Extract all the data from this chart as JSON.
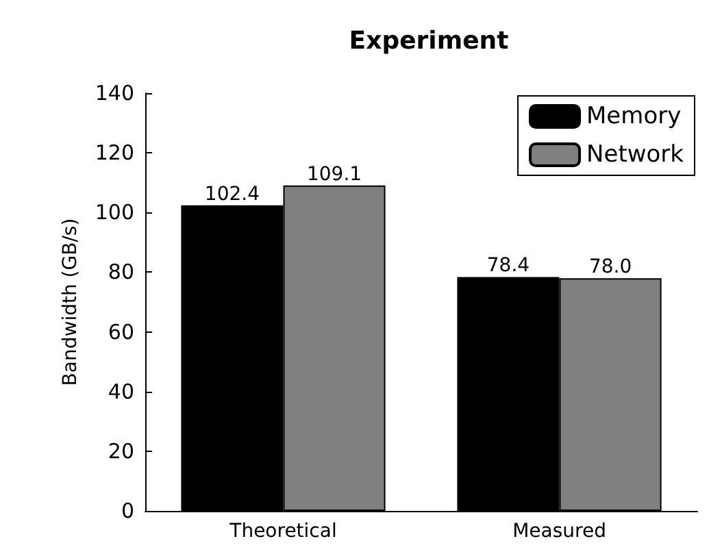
{
  "chart_data": {
    "type": "bar",
    "title": "Experiment",
    "ylabel": "Bandwidth (GB/s)",
    "categories": [
      "Theoretical",
      "Measured"
    ],
    "series": [
      {
        "name": "Memory",
        "color": "#000000",
        "values": [
          102.4,
          78.4
        ],
        "value_labels": [
          "102.4",
          "78.4"
        ]
      },
      {
        "name": "Network",
        "color": "#808080",
        "values": [
          109.1,
          78.0
        ],
        "value_labels": [
          "109.1",
          "78.0"
        ]
      }
    ],
    "ylim": [
      0,
      140
    ],
    "yticks": [
      0,
      20,
      40,
      60,
      80,
      100,
      120,
      140
    ],
    "grid": false,
    "legend": "top right"
  }
}
